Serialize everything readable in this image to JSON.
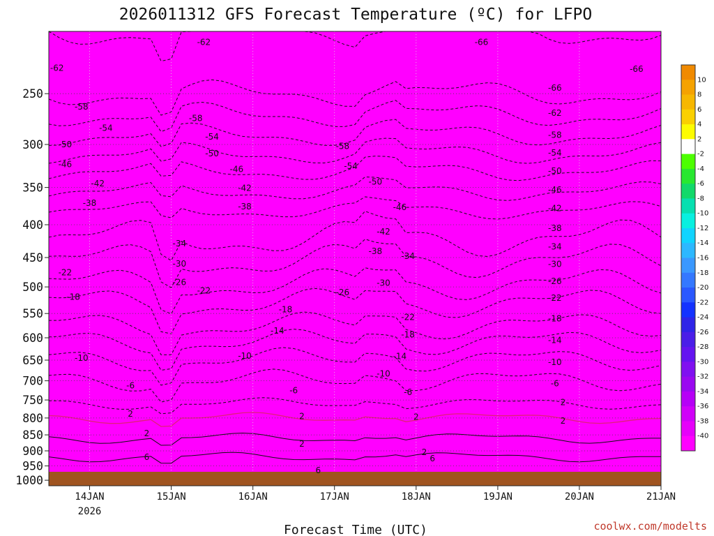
{
  "chart_data": {
    "type": "heatmap",
    "title": "2026011312 GFS Forecast Temperature (ºC) for LFPO",
    "xlabel": "Forecast Time (UTC)",
    "ylabel": "",
    "credit": "coolwx.com/modelts",
    "y_scale": "log",
    "y_inverted": true,
    "y_ticks": [
      250,
      300,
      350,
      400,
      450,
      500,
      550,
      600,
      650,
      700,
      750,
      800,
      850,
      900,
      950,
      1000
    ],
    "y_range_hPa": [
      200,
      1020
    ],
    "x_range_days": [
      "13JAN 12Z",
      "21JAN 00Z"
    ],
    "x_ticks": [
      {
        "label": "14JAN",
        "sub": "2026",
        "day": 14
      },
      {
        "label": "15JAN",
        "sub": "",
        "day": 15
      },
      {
        "label": "16JAN",
        "sub": "",
        "day": 16
      },
      {
        "label": "17JAN",
        "sub": "",
        "day": 17
      },
      {
        "label": "18JAN",
        "sub": "",
        "day": 18
      },
      {
        "label": "19JAN",
        "sub": "",
        "day": 19
      },
      {
        "label": "20JAN",
        "sub": "",
        "day": 20
      },
      {
        "label": "21JAN",
        "sub": "",
        "day": 21
      }
    ],
    "grid": true,
    "colorbar": {
      "labels": [
        "10",
        "8",
        "6",
        "4",
        "2",
        "-2",
        "-4",
        "-6",
        "-8",
        "-10",
        "-12",
        "-14",
        "-16",
        "-18",
        "-20",
        "-22",
        "-24",
        "-26",
        "-28",
        "-30",
        "-32",
        "-34",
        "-36",
        "-38",
        "-40"
      ],
      "colors": [
        "#f08a00",
        "#f5a200",
        "#f7b700",
        "#fad000",
        "#fdfc00",
        "#ffffff",
        "#4cff00",
        "#28e830",
        "#12d96a",
        "#06e0b0",
        "#08f0e0",
        "#10d4ff",
        "#2db8ff",
        "#3a98ff",
        "#3478ff",
        "#2a58ff",
        "#1432ff",
        "#2f24e8",
        "#4a1ee8",
        "#6414f0",
        "#8010f0",
        "#9a08f0",
        "#b600f6",
        "#d000f8",
        "#e600fa",
        "#ff00ff"
      ]
    },
    "temperature_levels": [
      {
        "p": 200,
        "t": -66
      },
      {
        "p": 250,
        "t": -62
      },
      {
        "p": 270,
        "t": -58
      },
      {
        "p": 290,
        "t": -54
      },
      {
        "p": 310,
        "t": -50
      },
      {
        "p": 330,
        "t": -46
      },
      {
        "p": 355,
        "t": -42
      },
      {
        "p": 380,
        "t": -38
      },
      {
        "p": 420,
        "t": -34
      },
      {
        "p": 455,
        "t": -30
      },
      {
        "p": 495,
        "t": -26
      },
      {
        "p": 530,
        "t": -22
      },
      {
        "p": 575,
        "t": -18
      },
      {
        "p": 610,
        "t": -14
      },
      {
        "p": 650,
        "t": -10
      },
      {
        "p": 700,
        "t": -6
      },
      {
        "p": 760,
        "t": -2
      },
      {
        "p": 800,
        "t": 2
      },
      {
        "p": 860,
        "t": 4
      },
      {
        "p": 920,
        "t": 6
      },
      {
        "p": 990,
        "t": 8
      }
    ],
    "contour_labels": [
      {
        "text": "-62",
        "day": 13.6,
        "p": 228
      },
      {
        "text": "-62",
        "day": 15.4,
        "p": 208
      },
      {
        "text": "-66",
        "day": 18.8,
        "p": 208
      },
      {
        "text": "-66",
        "day": 20.7,
        "p": 229
      },
      {
        "text": "-66",
        "day": 19.7,
        "p": 245
      },
      {
        "text": "-58",
        "day": 13.9,
        "p": 262
      },
      {
        "text": "-58",
        "day": 15.3,
        "p": 273
      },
      {
        "text": "-58",
        "day": 17.1,
        "p": 302
      },
      {
        "text": "-62",
        "day": 19.7,
        "p": 268
      },
      {
        "text": "-54",
        "day": 14.2,
        "p": 283
      },
      {
        "text": "-54",
        "day": 15.5,
        "p": 292
      },
      {
        "text": "-54",
        "day": 17.2,
        "p": 324
      },
      {
        "text": "-58",
        "day": 19.7,
        "p": 290
      },
      {
        "text": "-50",
        "day": 13.7,
        "p": 300
      },
      {
        "text": "-50",
        "day": 15.5,
        "p": 310
      },
      {
        "text": "-50",
        "day": 17.5,
        "p": 343
      },
      {
        "text": "-54",
        "day": 19.7,
        "p": 309
      },
      {
        "text": "-46",
        "day": 13.7,
        "p": 322
      },
      {
        "text": "-46",
        "day": 15.8,
        "p": 328
      },
      {
        "text": "-46",
        "day": 17.8,
        "p": 376
      },
      {
        "text": "-50",
        "day": 19.7,
        "p": 330
      },
      {
        "text": "-42",
        "day": 14.1,
        "p": 345
      },
      {
        "text": "-42",
        "day": 15.9,
        "p": 351
      },
      {
        "text": "-42",
        "day": 17.6,
        "p": 410
      },
      {
        "text": "-46",
        "day": 19.7,
        "p": 353
      },
      {
        "text": "-38",
        "day": 14.0,
        "p": 370
      },
      {
        "text": "-38",
        "day": 15.9,
        "p": 375
      },
      {
        "text": "-38",
        "day": 17.5,
        "p": 440
      },
      {
        "text": "-42",
        "day": 19.7,
        "p": 377
      },
      {
        "text": "-34",
        "day": 15.1,
        "p": 428
      },
      {
        "text": "-34",
        "day": 17.9,
        "p": 448
      },
      {
        "text": "-38",
        "day": 19.7,
        "p": 405
      },
      {
        "text": "-30",
        "day": 15.1,
        "p": 460
      },
      {
        "text": "-30",
        "day": 17.6,
        "p": 493
      },
      {
        "text": "-34",
        "day": 19.7,
        "p": 433
      },
      {
        "text": "-26",
        "day": 15.1,
        "p": 492
      },
      {
        "text": "-26",
        "day": 17.1,
        "p": 510
      },
      {
        "text": "-30",
        "day": 19.7,
        "p": 461
      },
      {
        "text": "-22",
        "day": 13.7,
        "p": 475
      },
      {
        "text": "-22",
        "day": 15.4,
        "p": 507
      },
      {
        "text": "-22",
        "day": 17.9,
        "p": 557
      },
      {
        "text": "-26",
        "day": 19.7,
        "p": 490
      },
      {
        "text": "-18",
        "day": 13.8,
        "p": 518
      },
      {
        "text": "-18",
        "day": 16.4,
        "p": 542
      },
      {
        "text": "-18",
        "day": 17.9,
        "p": 593
      },
      {
        "text": "-22",
        "day": 19.7,
        "p": 520
      },
      {
        "text": "-14",
        "day": 16.3,
        "p": 585
      },
      {
        "text": "-14",
        "day": 17.8,
        "p": 641
      },
      {
        "text": "-18",
        "day": 19.7,
        "p": 560
      },
      {
        "text": "-14",
        "day": 19.7,
        "p": 605
      },
      {
        "text": "-10",
        "day": 13.9,
        "p": 645
      },
      {
        "text": "-10",
        "day": 15.9,
        "p": 640
      },
      {
        "text": "-10",
        "day": 17.6,
        "p": 683
      },
      {
        "text": "-10",
        "day": 19.7,
        "p": 655
      },
      {
        "text": "-6",
        "day": 14.5,
        "p": 712
      },
      {
        "text": "-6",
        "day": 16.5,
        "p": 725
      },
      {
        "text": "-6",
        "day": 17.9,
        "p": 729
      },
      {
        "text": "-6",
        "day": 19.7,
        "p": 707
      },
      {
        "text": "2",
        "day": 14.5,
        "p": 788
      },
      {
        "text": "2",
        "day": 16.6,
        "p": 795
      },
      {
        "text": "2",
        "day": 18.0,
        "p": 797
      },
      {
        "text": "2",
        "day": 19.8,
        "p": 756
      },
      {
        "text": "2",
        "day": 19.8,
        "p": 808
      },
      {
        "text": "2",
        "day": 14.7,
        "p": 845
      },
      {
        "text": "2",
        "day": 16.6,
        "p": 878
      },
      {
        "text": "2",
        "day": 18.1,
        "p": 905
      },
      {
        "text": "6",
        "day": 14.7,
        "p": 920
      },
      {
        "text": "6",
        "day": 16.8,
        "p": 965
      },
      {
        "text": "6",
        "day": 18.2,
        "p": 925
      }
    ]
  }
}
